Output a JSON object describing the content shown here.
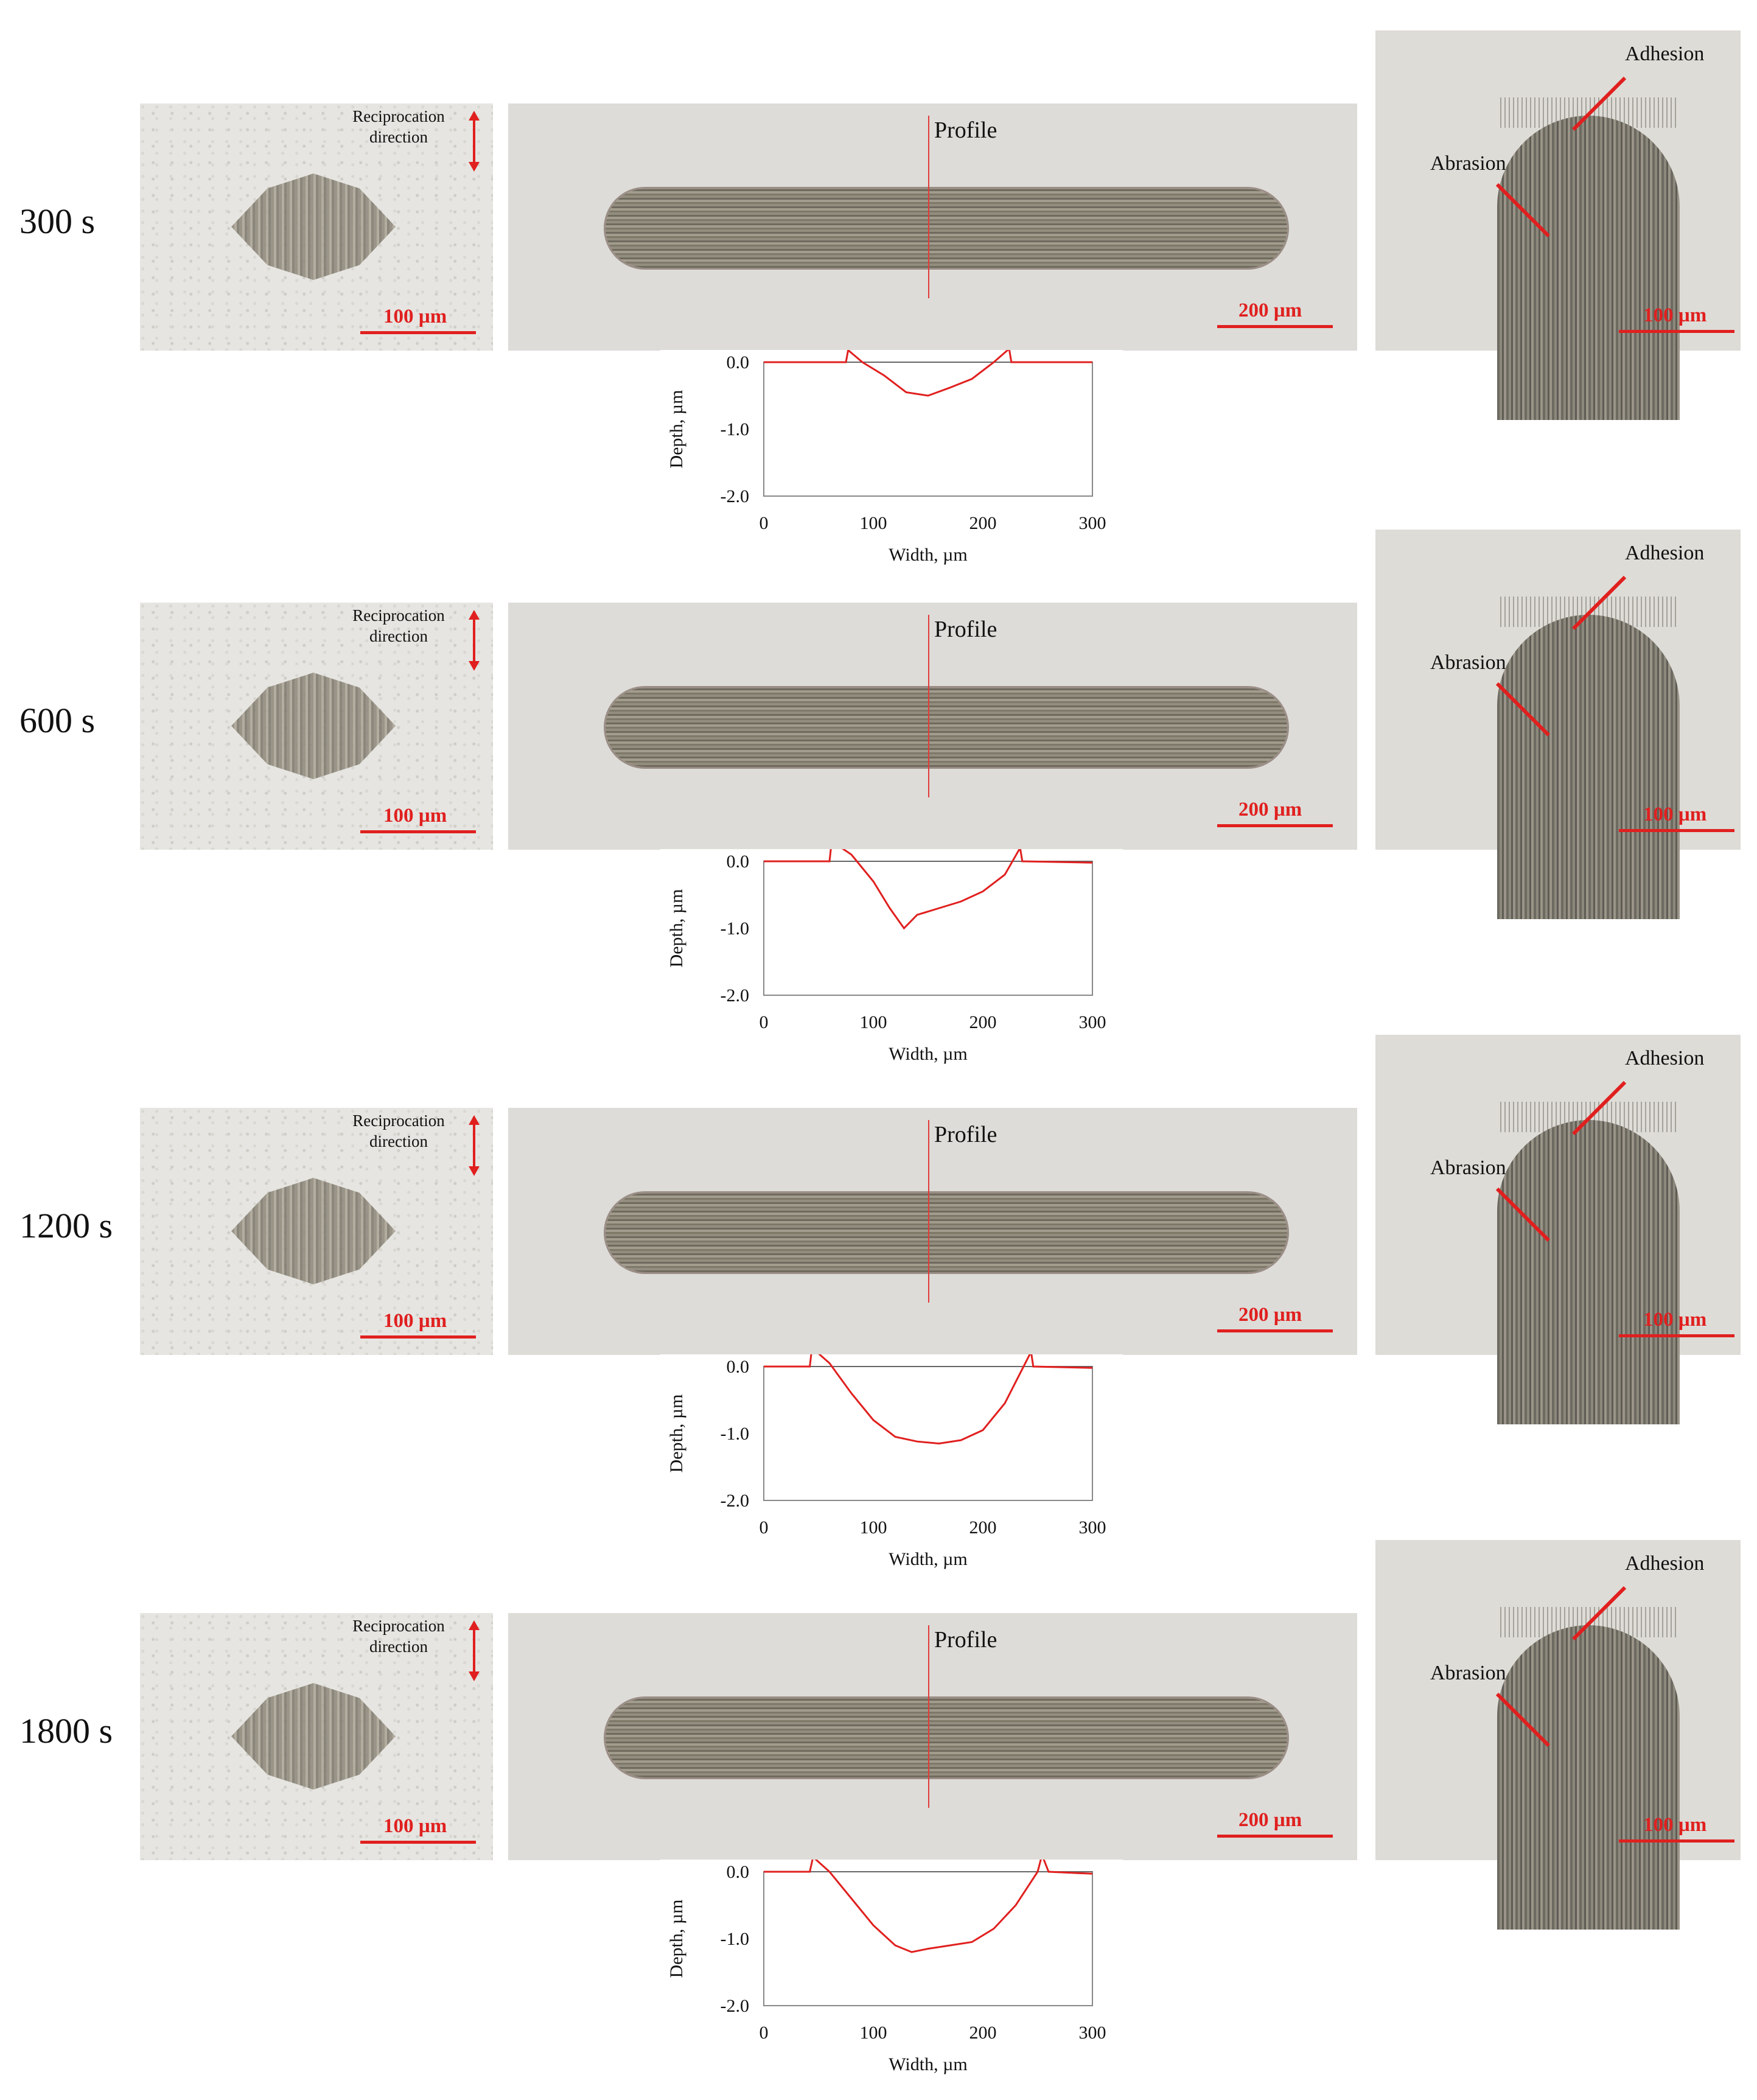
{
  "common": {
    "reciprocation_line1": "Reciprocation",
    "reciprocation_line2": "direction",
    "profile_label": "Profile",
    "scale_100": "100 µm",
    "scale_200": "200 µm",
    "adhesion_label": "Adhesion",
    "abrasion_label": "Abrasion",
    "xlabel": "Width, µm",
    "ylabel": "Depth, µm",
    "x_ticks": [
      "0",
      "100",
      "200",
      "300"
    ],
    "y_ticks": [
      "0.0",
      "-1.0",
      "-2.0"
    ],
    "accent_color": "#e0201f"
  },
  "rows": [
    {
      "time": "300 s"
    },
    {
      "time": "600 s"
    },
    {
      "time": "1200 s"
    },
    {
      "time": "1800 s"
    }
  ],
  "chart_data": [
    {
      "type": "line",
      "xlabel": "Width, µm",
      "ylabel": "Depth, µm",
      "xlim": [
        0,
        300
      ],
      "ylim": [
        -2.0,
        0.0
      ],
      "series": [
        {
          "x": [
            0,
            75,
            77,
            90,
            110,
            130,
            150,
            170,
            190,
            210,
            224,
            226,
            300
          ],
          "y": [
            0.0,
            0.0,
            0.18,
            0.0,
            -0.2,
            -0.45,
            -0.5,
            -0.38,
            -0.25,
            0.0,
            0.2,
            0.0,
            0.0
          ]
        }
      ]
    },
    {
      "type": "line",
      "xlabel": "Width, µm",
      "ylabel": "Depth, µm",
      "xlim": [
        0,
        300
      ],
      "ylim": [
        -2.0,
        0.0
      ],
      "series": [
        {
          "x": [
            0,
            60,
            62,
            80,
            100,
            115,
            128,
            140,
            160,
            180,
            200,
            220,
            234,
            236,
            300
          ],
          "y": [
            0.0,
            0.0,
            0.3,
            0.1,
            -0.3,
            -0.7,
            -1.0,
            -0.8,
            -0.7,
            -0.6,
            -0.45,
            -0.2,
            0.2,
            0.0,
            -0.02
          ]
        }
      ]
    },
    {
      "type": "line",
      "xlabel": "Width, µm",
      "ylabel": "Depth, µm",
      "xlim": [
        0,
        300
      ],
      "ylim": [
        -2.0,
        0.0
      ],
      "series": [
        {
          "x": [
            0,
            42,
            44,
            60,
            80,
            100,
            120,
            140,
            160,
            180,
            200,
            220,
            244,
            246,
            300
          ],
          "y": [
            0.0,
            0.0,
            0.28,
            0.05,
            -0.4,
            -0.8,
            -1.05,
            -1.12,
            -1.15,
            -1.1,
            -0.95,
            -0.55,
            0.22,
            0.0,
            -0.02
          ]
        }
      ]
    },
    {
      "type": "line",
      "xlabel": "Width, µm",
      "ylabel": "Depth, µm",
      "xlim": [
        0,
        300
      ],
      "ylim": [
        -2.0,
        0.0
      ],
      "series": [
        {
          "x": [
            0,
            42,
            45,
            60,
            80,
            100,
            120,
            135,
            150,
            170,
            190,
            210,
            230,
            250,
            254,
            260,
            300
          ],
          "y": [
            0.0,
            0.0,
            0.22,
            0.0,
            -0.4,
            -0.8,
            -1.1,
            -1.2,
            -1.15,
            -1.1,
            -1.05,
            -0.85,
            -0.5,
            0.0,
            0.25,
            0.0,
            -0.03
          ]
        }
      ]
    }
  ]
}
